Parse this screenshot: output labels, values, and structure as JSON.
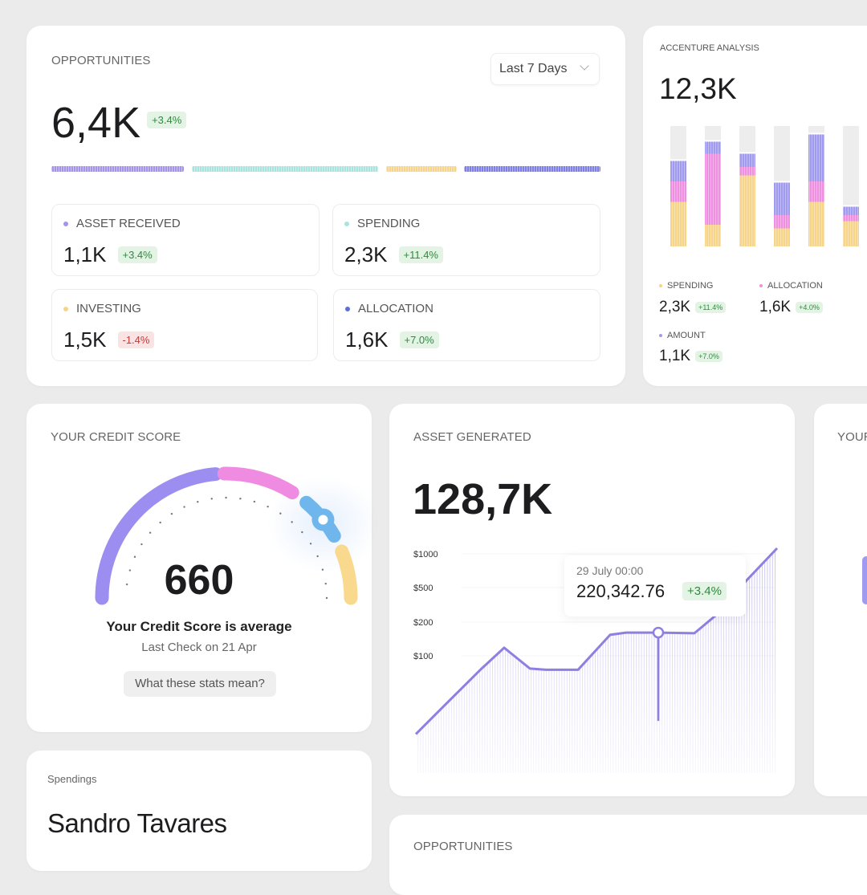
{
  "opportunities": {
    "title": "OPPORTUNITIES",
    "filter": "Last 7 Days",
    "value": "6,4K",
    "change": "+3.4%",
    "segments": [
      {
        "color": "#a593ec",
        "share": 22
      },
      {
        "color": "#a8e3de",
        "share": 31
      },
      {
        "color": "#f6d48a",
        "share": 12
      },
      {
        "color": "#7d7fe6",
        "share": 23
      }
    ],
    "items": [
      {
        "label": "ASSET RECEIVED",
        "value": "1,1K",
        "change": "+3.4%",
        "color": "#a593ec",
        "negative": false
      },
      {
        "label": "SPENDING",
        "value": "2,3K",
        "change": "+11.4%",
        "color": "#a8e3de",
        "negative": false
      },
      {
        "label": "INVESTING",
        "value": "1,5K",
        "change": "-1.4%",
        "color": "#f6d48a",
        "negative": true
      },
      {
        "label": "ALLOCATION",
        "value": "1,6K",
        "change": "+7.0%",
        "color": "#5a6ee0",
        "negative": false
      }
    ]
  },
  "accenture": {
    "title": "ACCENTURE ANALYSIS",
    "value": "12,3K",
    "legend": [
      {
        "label": "SPENDING",
        "value": "2,3K",
        "change": "+11.4%",
        "color": "#f6d48a"
      },
      {
        "label": "ALLOCATION",
        "value": "1,6K",
        "change": "+4.0%",
        "color": "#ee8fe0"
      },
      {
        "label": "AMOUNT",
        "value": "1,1K",
        "change": "+7.0%",
        "color": "#a09af0"
      }
    ]
  },
  "chart_data": [
    {
      "type": "bar",
      "stacked": true,
      "series": [
        {
          "name": "SPENDING",
          "color": "#f6d48a",
          "values": [
            37,
            18,
            59,
            15,
            37,
            21
          ]
        },
        {
          "name": "ALLOCATION",
          "color": "#ee8fe0",
          "values": [
            17,
            59,
            7,
            11,
            17,
            5
          ]
        },
        {
          "name": "AMOUNT",
          "color": "#a09af0",
          "values": [
            17,
            10,
            11,
            27,
            39,
            7
          ]
        }
      ],
      "ylim": [
        0,
        100
      ]
    },
    {
      "type": "line",
      "yticks": [
        "$1000",
        "$500",
        "$200",
        "$100"
      ],
      "ytick_values": [
        1000,
        500,
        200,
        100
      ],
      "ylog": true,
      "values": [
        20,
        40,
        77,
        118,
        77,
        75,
        75,
        154,
        161,
        161,
        159,
        232,
        580,
        1122
      ],
      "color": "#8f7fe0",
      "highlight_index": 9
    }
  ],
  "credit": {
    "title": "YOUR CREDIT SCORE",
    "score": "660",
    "status": "Your Credit Score is average",
    "last_check": "Last Check on 21 Apr",
    "button": "What these stats mean?"
  },
  "asset": {
    "title": "ASSET GENERATED",
    "value": "128,7K",
    "tooltip": {
      "date": "29 July 00:00",
      "value": "220,342.76",
      "change": "+3.4%"
    }
  },
  "your_card": {
    "title": "YOUR"
  },
  "spendings": {
    "title": "Spendings",
    "name": "Sandro Tavares"
  },
  "opportunities2": {
    "title": "OPPORTUNITIES"
  }
}
